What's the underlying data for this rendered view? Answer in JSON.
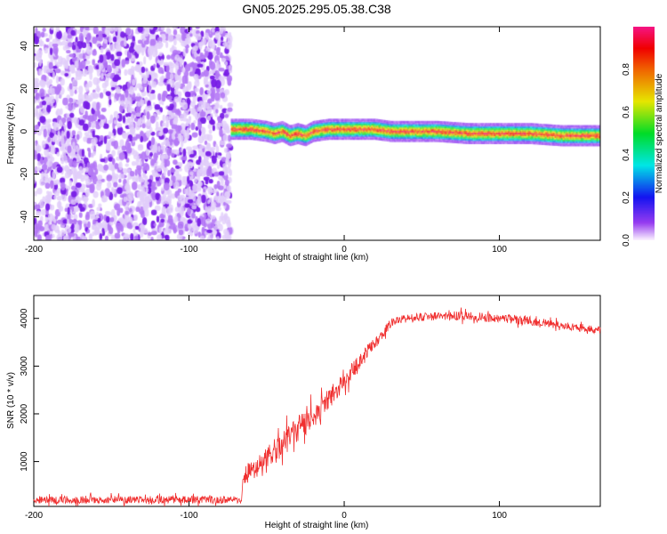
{
  "chart_data": [
    {
      "type": "heatmap",
      "title": "GN05.2025.295.05.38.C38",
      "xlabel": "Height of straight line (km)",
      "ylabel": "Frequency (Hz)",
      "xlim": [
        -200,
        165
      ],
      "ylim": [
        -51,
        49
      ],
      "xticks": [
        -200,
        -100,
        0,
        100
      ],
      "yticks": [
        -40,
        -20,
        0,
        20,
        40
      ],
      "noise_region_end_km": -73,
      "band_center_hz": {
        "x": [
          -73,
          -60,
          -50,
          -45,
          -40,
          -35,
          -30,
          -25,
          -20,
          -10,
          0,
          10,
          20,
          30,
          40,
          60,
          80,
          100,
          120,
          140,
          165
        ],
        "y": [
          1,
          1,
          0,
          -1,
          0,
          -2,
          -1,
          -2,
          0,
          1,
          1,
          1,
          1,
          0,
          0,
          0,
          -1,
          -1,
          -1,
          -2,
          -2
        ]
      },
      "band_halfwidth_hz": 3,
      "colorbar": {
        "label": "Normalized spectral amplitude",
        "ticks": [
          0.0,
          0.2,
          0.4,
          0.6,
          0.8
        ],
        "range": [
          0,
          1
        ]
      }
    },
    {
      "type": "line",
      "xlabel": "Height of straight line (km)",
      "ylabel": "SNR (10 * v/v)",
      "xlim": [
        -200,
        165
      ],
      "ylim": [
        60,
        4480
      ],
      "xticks": [
        -200,
        -100,
        0,
        100
      ],
      "yticks": [
        1000,
        2000,
        3000,
        4000
      ],
      "color": "#f03030",
      "series": [
        {
          "name": "SNR",
          "x": [
            -200,
            -150,
            -100,
            -66,
            -65,
            -55,
            -45,
            -35,
            -25,
            -15,
            -5,
            5,
            15,
            25,
            30,
            40,
            60,
            80,
            100,
            120,
            140,
            165
          ],
          "y": [
            200,
            200,
            200,
            200,
            700,
            900,
            1200,
            1500,
            1800,
            2100,
            2500,
            2900,
            3300,
            3700,
            3900,
            4000,
            4050,
            4050,
            4000,
            3950,
            3850,
            3750
          ],
          "noise": [
            130,
            130,
            130,
            130,
            350,
            400,
            450,
            450,
            450,
            400,
            350,
            300,
            250,
            200,
            150,
            150,
            150,
            150,
            150,
            150,
            130,
            130
          ]
        }
      ]
    }
  ]
}
